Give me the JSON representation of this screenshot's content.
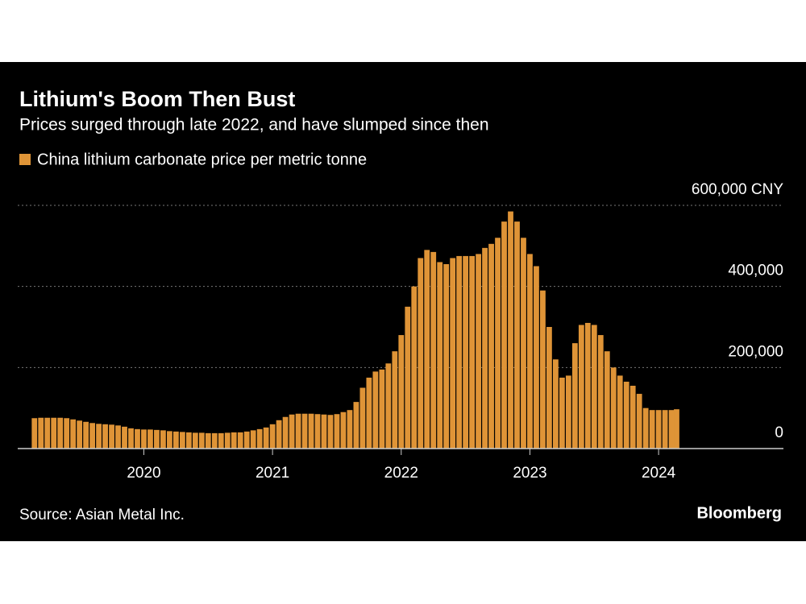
{
  "chart_data": {
    "type": "bar",
    "title": "Lithium's Boom Then Bust",
    "subtitle": "Prices surged through late 2022, and have slumped since then",
    "source": "Source: Asian Metal Inc.",
    "brand": "Bloomberg",
    "x": [
      2019.15,
      2019.2,
      2019.25,
      2019.3,
      2019.35,
      2019.4,
      2019.45,
      2019.5,
      2019.55,
      2019.6,
      2019.65,
      2019.7,
      2019.75,
      2019.8,
      2019.85,
      2019.9,
      2019.95,
      2020.0,
      2020.05,
      2020.1,
      2020.15,
      2020.2,
      2020.25,
      2020.3,
      2020.35,
      2020.4,
      2020.45,
      2020.5,
      2020.55,
      2020.6,
      2020.65,
      2020.7,
      2020.75,
      2020.8,
      2020.85,
      2020.9,
      2020.95,
      2021.0,
      2021.05,
      2021.1,
      2021.15,
      2021.2,
      2021.25,
      2021.3,
      2021.35,
      2021.4,
      2021.45,
      2021.5,
      2021.55,
      2021.6,
      2021.65,
      2021.7,
      2021.75,
      2021.8,
      2021.85,
      2021.9,
      2021.95,
      2022.0,
      2022.05,
      2022.1,
      2022.15,
      2022.2,
      2022.25,
      2022.3,
      2022.35,
      2022.4,
      2022.45,
      2022.5,
      2022.55,
      2022.6,
      2022.65,
      2022.7,
      2022.75,
      2022.8,
      2022.85,
      2022.9,
      2022.95,
      2023.0,
      2023.05,
      2023.1,
      2023.15,
      2023.2,
      2023.25,
      2023.3,
      2023.35,
      2023.4,
      2023.45,
      2023.5,
      2023.55,
      2023.6,
      2023.65,
      2023.7,
      2023.75,
      2023.8,
      2023.85,
      2023.9,
      2023.95,
      2024.0,
      2024.05,
      2024.1,
      2024.14
    ],
    "series": [
      {
        "name": "China lithium carbonate price per metric tonne",
        "color": "#df9437",
        "values": [
          75000,
          76000,
          76000,
          76000,
          76000,
          75000,
          72000,
          69000,
          66000,
          63000,
          61000,
          60000,
          59000,
          57000,
          54000,
          50000,
          48000,
          47000,
          47000,
          46000,
          45000,
          43000,
          42000,
          41000,
          40000,
          39000,
          39000,
          38000,
          38000,
          38000,
          39000,
          40000,
          40000,
          42000,
          45000,
          48000,
          52000,
          60000,
          70000,
          78000,
          84000,
          86000,
          86000,
          86000,
          85000,
          84000,
          83000,
          85000,
          90000,
          95000,
          115000,
          150000,
          175000,
          190000,
          195000,
          210000,
          240000,
          280000,
          350000,
          400000,
          470000,
          490000,
          485000,
          460000,
          455000,
          470000,
          475000,
          475000,
          475000,
          480000,
          495000,
          505000,
          520000,
          560000,
          585000,
          560000,
          520000,
          480000,
          450000,
          390000,
          300000,
          220000,
          175000,
          180000,
          260000,
          305000,
          310000,
          305000,
          280000,
          240000,
          200000,
          180000,
          165000,
          155000,
          135000,
          100000,
          95000,
          95000,
          95000,
          95000,
          97000
        ]
      }
    ],
    "xlim": [
      2019.02,
      2024.97
    ],
    "xticks": [
      2020,
      2021,
      2022,
      2023,
      2024
    ],
    "ylim": [
      0,
      600000
    ],
    "yticks": [
      0,
      {
        "value": 200000,
        "label": "200,000"
      },
      {
        "value": 400000,
        "label": "400,000"
      },
      {
        "value": 600000,
        "label": "600,000 CNY"
      }
    ],
    "grid": true
  }
}
